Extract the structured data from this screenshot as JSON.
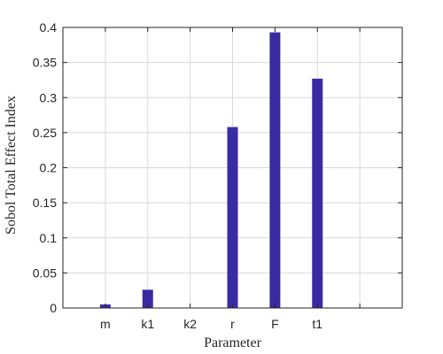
{
  "chart_data": {
    "type": "bar",
    "categories": [
      "m",
      "k1",
      "k2",
      "r",
      "F",
      "t1"
    ],
    "values": [
      0.005,
      0.026,
      0.0,
      0.258,
      0.393,
      0.327
    ],
    "xlabel": "Parameter",
    "ylabel": "Sobol Total Effect Index",
    "ylim": [
      0,
      0.4
    ],
    "yticks": [
      0,
      0.05,
      0.1,
      0.15,
      0.2,
      0.25,
      0.3,
      0.35,
      0.4
    ],
    "ytick_labels": [
      "0",
      "0.05",
      "0.1",
      "0.15",
      "0.2",
      "0.25",
      "0.3",
      "0.35",
      "0.4"
    ],
    "xlim": [
      0,
      8
    ],
    "grid": true,
    "bar_color": "#3a2ba3",
    "grid_color": "#d9d9d9",
    "axis_color": "#262626"
  }
}
